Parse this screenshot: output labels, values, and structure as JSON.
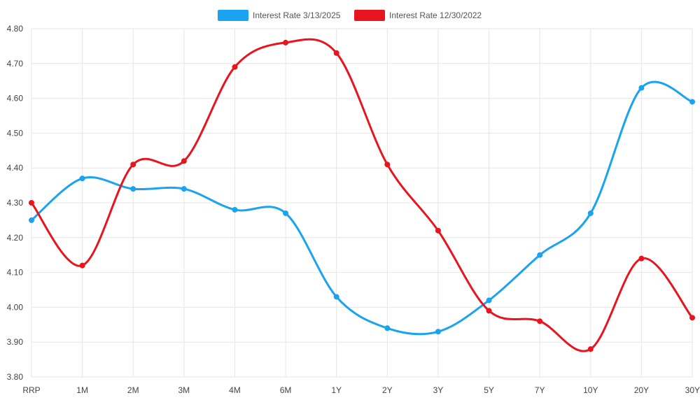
{
  "chart_data": {
    "type": "line",
    "title": "",
    "xlabel": "",
    "ylabel": "",
    "categories": [
      "RRP",
      "1M",
      "2M",
      "3M",
      "4M",
      "6M",
      "1Y",
      "2Y",
      "3Y",
      "5Y",
      "7Y",
      "10Y",
      "20Y",
      "30Y"
    ],
    "ylim": [
      3.8,
      4.8
    ],
    "yticks": [
      "4.80",
      "4.70",
      "4.60",
      "4.50",
      "4.40",
      "4.30",
      "4.20",
      "4.10",
      "4.00",
      "3.90",
      "3.80"
    ],
    "grid": true,
    "legend_position": "top-center",
    "series": [
      {
        "name": "Interest Rate 3/13/2025",
        "color": "#1aa3f0",
        "values": [
          4.25,
          4.37,
          4.34,
          4.34,
          4.28,
          4.27,
          4.03,
          3.94,
          3.93,
          4.02,
          4.15,
          4.27,
          4.63,
          4.59
        ]
      },
      {
        "name": "Interest Rate 12/30/2022",
        "color": "#e8141e",
        "values": [
          4.3,
          4.12,
          4.41,
          4.42,
          4.69,
          4.76,
          4.73,
          4.41,
          4.22,
          3.99,
          3.96,
          3.88,
          4.14,
          3.97
        ]
      }
    ]
  }
}
